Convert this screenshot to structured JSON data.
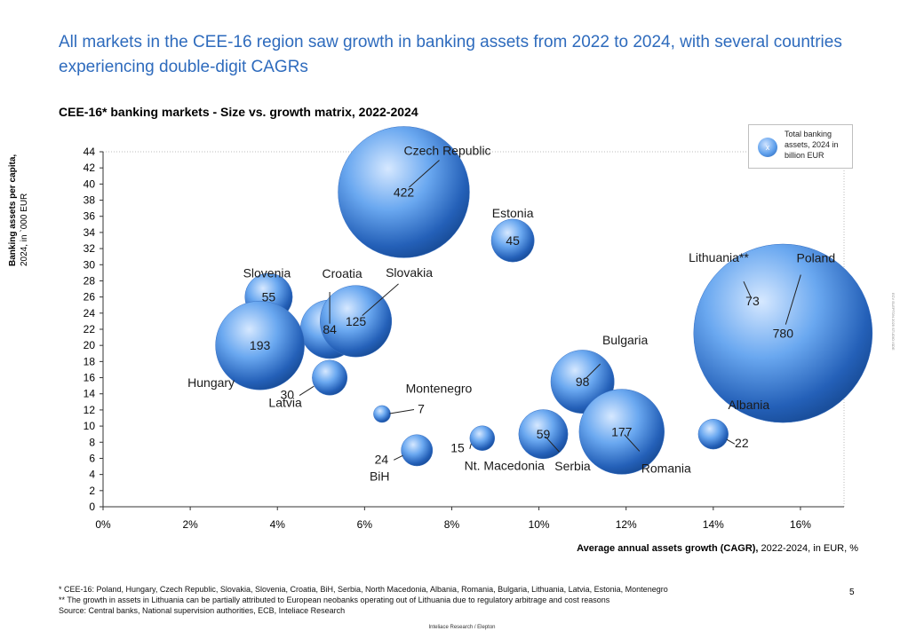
{
  "headline": "All markets in the CEE-16 region saw growth in banking assets from 2022 to 2024, with several countries experiencing double-digit CAGRs",
  "subtitle": "CEE-16* banking markets - Size vs. growth matrix, 2022-2024",
  "legend": {
    "symbol": "x",
    "text": "Total banking assets, 2024 in billion EUR"
  },
  "footnotes": {
    "line1": " * CEE-16: Poland, Hungary, Czech Republic, Slovakia, Slovenia, Croatia, BiH, Serbia, North Macedonia, Albania, Romania, Bulgaria, Lithuania, Latvia, Estonia, Montenegro",
    "line2": "** The growth in assets in Lithuania can be partially attributed to European neobanks operating out of Lithuania due to regulatory arbitrage and cost reasons",
    "line3": "Source: Central banks, National supervision authorities, ECB,  Inteliace Research"
  },
  "page_number": "5",
  "footer": "Inteliace Research / Elepton",
  "copyright": "ECV ELEPTON 2025 STUDIO ISDE",
  "colors": {
    "accent": "#2e6bbd",
    "bubble_light": "#cfe3ff",
    "bubble_mid": "#5fa0ec",
    "bubble_dark": "#1f5bb0"
  },
  "chart_data": {
    "type": "scatter",
    "title": "CEE-16* banking markets - Size vs. growth matrix, 2022-2024",
    "xlabel_bold": "Average annual assets growth (CAGR),",
    "xlabel_rest": " 2022-2024, in EUR, %",
    "ylabel_bold": "Banking assets per capita,",
    "ylabel_rest": "2024, in `000 EUR",
    "xlim": [
      0,
      17
    ],
    "ylim": [
      0,
      44
    ],
    "xticks": [
      0,
      2,
      4,
      6,
      8,
      10,
      12,
      14,
      16
    ],
    "xtick_labels": [
      "0%",
      "2%",
      "4%",
      "6%",
      "8%",
      "10%",
      "12%",
      "14%",
      "16%"
    ],
    "yticks": [
      0,
      2,
      4,
      6,
      8,
      10,
      12,
      14,
      16,
      18,
      20,
      22,
      24,
      26,
      28,
      30,
      32,
      34,
      36,
      38,
      40,
      42,
      44
    ],
    "points": [
      {
        "country": "Czech Republic",
        "x": 6.9,
        "y": 39,
        "assets": 422,
        "value_label": "422",
        "value_inside": true
      },
      {
        "country": "Estonia",
        "x": 9.4,
        "y": 33,
        "assets": 45,
        "value_label": "45",
        "value_inside": true
      },
      {
        "country": "Slovenia",
        "x": 3.8,
        "y": 26,
        "assets": 55,
        "value_label": "55",
        "value_inside": true
      },
      {
        "country": "Croatia",
        "x": 5.2,
        "y": 22,
        "assets": 84,
        "value_label": "84",
        "value_inside": true
      },
      {
        "country": "Slovakia",
        "x": 5.8,
        "y": 23,
        "assets": 125,
        "value_label": "125",
        "value_inside": true
      },
      {
        "country": "Hungary",
        "x": 3.6,
        "y": 20,
        "assets": 193,
        "value_label": "193",
        "value_inside": true
      },
      {
        "country": "Latvia",
        "x": 5.2,
        "y": 16,
        "assets": 30,
        "value_label": "30",
        "value_inside": false
      },
      {
        "country": "Montenegro",
        "x": 6.4,
        "y": 11.5,
        "assets": 7,
        "value_label": "7",
        "value_inside": false
      },
      {
        "country": "BiH",
        "x": 7.2,
        "y": 7,
        "assets": 24,
        "value_label": "24",
        "value_inside": false
      },
      {
        "country": "Nt. Macedonia",
        "x": 8.7,
        "y": 8.5,
        "assets": 15,
        "value_label": "15",
        "value_inside": false
      },
      {
        "country": "Serbia",
        "x": 10.1,
        "y": 9,
        "assets": 59,
        "value_label": "59",
        "value_inside": true
      },
      {
        "country": "Bulgaria",
        "x": 11,
        "y": 15.5,
        "assets": 98,
        "value_label": "98",
        "value_inside": true
      },
      {
        "country": "Romania",
        "x": 11.9,
        "y": 9.3,
        "assets": 177,
        "value_label": "177",
        "value_inside": true
      },
      {
        "country": "Albania",
        "x": 14,
        "y": 9,
        "assets": 22,
        "value_label": "22",
        "value_inside": false
      },
      {
        "country": "Lithuania**",
        "x": 14.9,
        "y": 25.5,
        "assets": 73,
        "value_label": "73",
        "value_inside": true
      },
      {
        "country": "Poland",
        "x": 15.6,
        "y": 21.5,
        "assets": 780,
        "value_label": "780",
        "value_inside": true
      }
    ]
  }
}
